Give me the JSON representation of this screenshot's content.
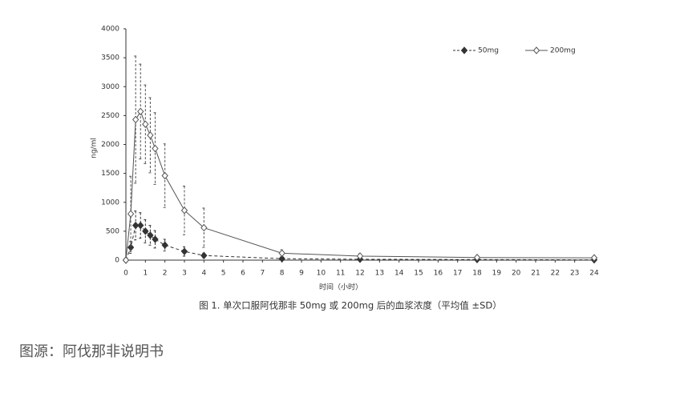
{
  "chart_data": {
    "type": "line",
    "title": "图 1. 单次口服阿伐那非 50mg 或 200mg 后的血浆浓度（平均值 ±SD）",
    "source": "图源：阿伐那非说明书",
    "x_label": "时间（小时）",
    "y_label": "ng/ml",
    "xlim": [
      0,
      24
    ],
    "xticks": [
      0,
      1,
      2,
      3,
      4,
      5,
      6,
      7,
      8,
      9,
      10,
      11,
      12,
      13,
      14,
      15,
      16,
      17,
      18,
      19,
      20,
      21,
      22,
      23,
      24
    ],
    "ylim": [
      0,
      4000
    ],
    "yticks": [
      0,
      500,
      1000,
      1500,
      2000,
      2500,
      3000,
      3500,
      4000
    ],
    "legend": "top-right",
    "series": [
      {
        "name": "50mg",
        "color": "#333333",
        "line_style": "dashed",
        "marker": "filled-diamond",
        "x": [
          0,
          0.25,
          0.5,
          0.75,
          1,
          1.25,
          1.5,
          2,
          3,
          4,
          8,
          12,
          18,
          24
        ],
        "values": [
          0,
          220,
          600,
          600,
          500,
          430,
          360,
          260,
          150,
          80,
          25,
          15,
          10,
          5
        ],
        "errors": [
          0,
          100,
          250,
          220,
          200,
          170,
          150,
          100,
          80,
          40,
          15,
          10,
          8,
          6
        ]
      },
      {
        "name": "200mg",
        "color": "#555555",
        "line_style": "solid",
        "marker": "open-diamond",
        "x": [
          0,
          0.25,
          0.5,
          0.75,
          1,
          1.25,
          1.5,
          2,
          3,
          4,
          8,
          12,
          18,
          24
        ],
        "values": [
          0,
          800,
          2430,
          2570,
          2350,
          2160,
          1930,
          1460,
          860,
          560,
          120,
          70,
          45,
          40
        ],
        "errors": [
          0,
          650,
          1100,
          820,
          680,
          650,
          620,
          550,
          420,
          340,
          60,
          40,
          30,
          30
        ]
      }
    ]
  }
}
